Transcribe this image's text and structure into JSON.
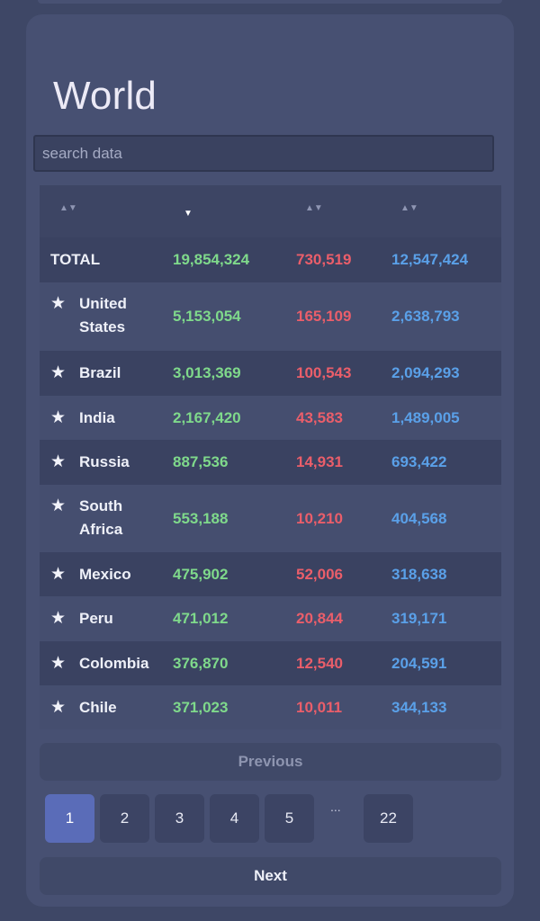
{
  "title": "World",
  "search": {
    "placeholder": "search data",
    "value": ""
  },
  "icons": {
    "favorite": "star-icon",
    "sort": "sort-arrows-icon",
    "sort_active": "sort-down-icon"
  },
  "colors": {
    "confirmed": "#7fd98b",
    "deaths": "#ea5e6a",
    "recovered": "#5aa0e8",
    "active_page": "#5a6cb8"
  },
  "total": {
    "label": "TOTAL",
    "confirmed": "19,854,324",
    "deaths": "730,519",
    "recovered": "12,547,424"
  },
  "rows": [
    {
      "country": "United States",
      "confirmed": "5,153,054",
      "deaths": "165,109",
      "recovered": "2,638,793"
    },
    {
      "country": "Brazil",
      "confirmed": "3,013,369",
      "deaths": "100,543",
      "recovered": "2,094,293"
    },
    {
      "country": "India",
      "confirmed": "2,167,420",
      "deaths": "43,583",
      "recovered": "1,489,005"
    },
    {
      "country": "Russia",
      "confirmed": "887,536",
      "deaths": "14,931",
      "recovered": "693,422"
    },
    {
      "country": "South Africa",
      "confirmed": "553,188",
      "deaths": "10,210",
      "recovered": "404,568"
    },
    {
      "country": "Mexico",
      "confirmed": "475,902",
      "deaths": "52,006",
      "recovered": "318,638"
    },
    {
      "country": "Peru",
      "confirmed": "471,012",
      "deaths": "20,844",
      "recovered": "319,171"
    },
    {
      "country": "Colombia",
      "confirmed": "376,870",
      "deaths": "12,540",
      "recovered": "204,591"
    },
    {
      "country": "Chile",
      "confirmed": "371,023",
      "deaths": "10,011",
      "recovered": "344,133"
    }
  ],
  "pagination": {
    "previous_label": "Previous",
    "next_label": "Next",
    "pages": [
      "1",
      "2",
      "3",
      "4",
      "5"
    ],
    "ellipsis": "...",
    "last_page": "22",
    "current": "1"
  }
}
